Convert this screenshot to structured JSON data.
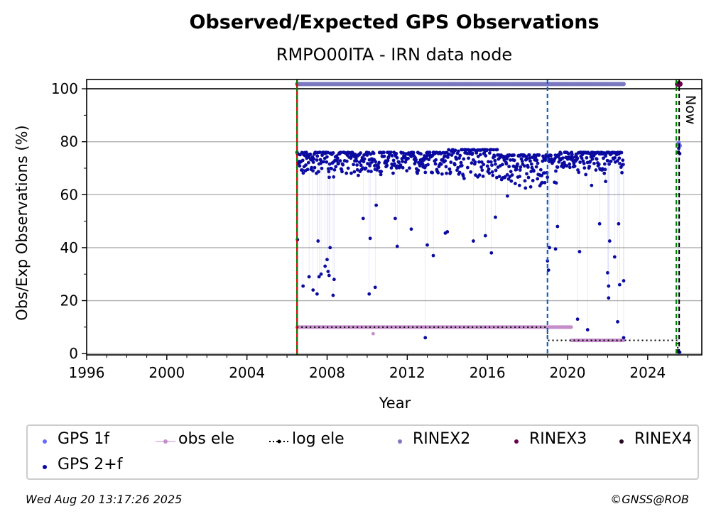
{
  "title": "Observed/Expected GPS Observations",
  "subtitle": "RMPO00ITA - IRN data node",
  "footer": {
    "timestamp": "Wed Aug 20 13:17:26 2025",
    "copyright": "©GNSS@ROB"
  },
  "colors": {
    "gps1f": "#6b6bf5",
    "gps2f": "#0a0aa0",
    "obs_ele": "#c58ecb",
    "log_ele": "#000000",
    "rinex2": "#7b78c0",
    "rinex3": "#6b0050",
    "rinex4": "#2a0a20",
    "vline_green": "#008000",
    "vline_red": "#cc0000",
    "vline_blue": "#1560bd",
    "vline_black": "#000000"
  },
  "legend": [
    {
      "key": "gps1f",
      "label": "GPS 1f"
    },
    {
      "key": "obs_ele",
      "label": "obs ele"
    },
    {
      "key": "log_ele",
      "label": "log ele"
    },
    {
      "key": "rinex2",
      "label": "RINEX2"
    },
    {
      "key": "rinex3",
      "label": "RINEX3"
    },
    {
      "key": "rinex4",
      "label": "RINEX4"
    },
    {
      "key": "gps2f",
      "label": "GPS 2+f"
    }
  ],
  "chart_data": {
    "type": "scatter",
    "xlabel": "Year",
    "ylabel": "Obs/Exp Observations (%)",
    "xlim": [
      1996,
      2026.7
    ],
    "ylim": [
      -0.5,
      103.5
    ],
    "xticks": [
      1996,
      2000,
      2004,
      2008,
      2012,
      2016,
      2020,
      2024
    ],
    "yticks": [
      0,
      20,
      40,
      60,
      80,
      100
    ],
    "grid": "horizontal",
    "now_label": "Now",
    "reference_line_y": 100,
    "vertical_lines": [
      {
        "x": 2006.5,
        "style": "green-red-dashed"
      },
      {
        "x": 2019.0,
        "style": "blue-dashed"
      },
      {
        "x": 2025.5,
        "style": "green-black-dashed"
      }
    ],
    "series": [
      {
        "name": "GPS 2+f",
        "key": "gps2f",
        "main_band": {
          "x_range": [
            2006.5,
            2022.8
          ],
          "y_typical": [
            68,
            76
          ]
        },
        "outliers": [
          [
            2006.52,
            43
          ],
          [
            2006.8,
            25.5
          ],
          [
            2007.1,
            29
          ],
          [
            2007.3,
            24
          ],
          [
            2007.5,
            22.5
          ],
          [
            2007.55,
            42.5
          ],
          [
            2007.6,
            29
          ],
          [
            2007.7,
            30
          ],
          [
            2007.9,
            33
          ],
          [
            2008.0,
            35.5
          ],
          [
            2008.05,
            31
          ],
          [
            2008.1,
            29.5
          ],
          [
            2008.15,
            40
          ],
          [
            2008.3,
            22
          ],
          [
            2008.35,
            28
          ],
          [
            2009.8,
            51
          ],
          [
            2010.1,
            22.5
          ],
          [
            2010.15,
            43.5
          ],
          [
            2010.4,
            25
          ],
          [
            2010.45,
            56
          ],
          [
            2011.4,
            51
          ],
          [
            2011.5,
            40.5
          ],
          [
            2012.2,
            47
          ],
          [
            2012.9,
            6
          ],
          [
            2013.0,
            41
          ],
          [
            2013.3,
            37
          ],
          [
            2013.9,
            45.5
          ],
          [
            2014.0,
            46
          ],
          [
            2015.3,
            42.5
          ],
          [
            2015.9,
            44.5
          ],
          [
            2016.2,
            38
          ],
          [
            2016.4,
            51.5
          ],
          [
            2017.0,
            59.5
          ],
          [
            2017.6,
            63.5
          ],
          [
            2017.9,
            62.5
          ],
          [
            2018.5,
            66
          ],
          [
            2019.0,
            35
          ],
          [
            2019.05,
            31.5
          ],
          [
            2019.1,
            40
          ],
          [
            2019.4,
            39.5
          ],
          [
            2019.5,
            48
          ],
          [
            2020.5,
            13
          ],
          [
            2020.6,
            38.5
          ],
          [
            2021.0,
            9
          ],
          [
            2021.2,
            63.5
          ],
          [
            2021.6,
            49
          ],
          [
            2021.9,
            65
          ],
          [
            2022.0,
            30.5
          ],
          [
            2022.05,
            25.5
          ],
          [
            2022.1,
            42.5
          ],
          [
            2022.05,
            21
          ],
          [
            2022.35,
            36.5
          ],
          [
            2022.5,
            12
          ],
          [
            2022.55,
            49
          ],
          [
            2022.6,
            26
          ],
          [
            2022.8,
            27.5
          ],
          [
            2022.8,
            6
          ],
          [
            2025.5,
            1
          ],
          [
            2025.55,
            0.5
          ],
          [
            2025.6,
            0.5
          ],
          [
            2025.5,
            76
          ],
          [
            2025.55,
            77.5
          ],
          [
            2025.6,
            75.5
          ]
        ]
      },
      {
        "name": "GPS 1f",
        "key": "gps1f",
        "points": [
          [
            2025.5,
            79
          ],
          [
            2025.55,
            79.5
          ],
          [
            2025.6,
            78.5
          ]
        ]
      },
      {
        "name": "obs ele",
        "key": "obs_ele",
        "segments": [
          {
            "x": [
              2006.5,
              2020.2
            ],
            "y": 10
          },
          {
            "x": [
              2020.2,
              2022.8
            ],
            "y": 5
          }
        ],
        "outliers": [
          [
            2010.3,
            7.5
          ]
        ]
      },
      {
        "name": "log ele",
        "key": "log_ele",
        "steps": [
          {
            "x": [
              2006.5,
              2019.0
            ],
            "y": 10
          },
          {
            "x": [
              2019.0,
              2025.5
            ],
            "y": 5
          }
        ]
      },
      {
        "name": "RINEX2",
        "key": "rinex2",
        "x_range": [
          2006.5,
          2022.8
        ],
        "y": 101.8
      },
      {
        "name": "RINEX3",
        "key": "rinex3",
        "points": [
          [
            2025.5,
            101.8
          ],
          [
            2025.6,
            101.8
          ]
        ]
      },
      {
        "name": "RINEX4",
        "key": "rinex4",
        "points": []
      }
    ]
  }
}
